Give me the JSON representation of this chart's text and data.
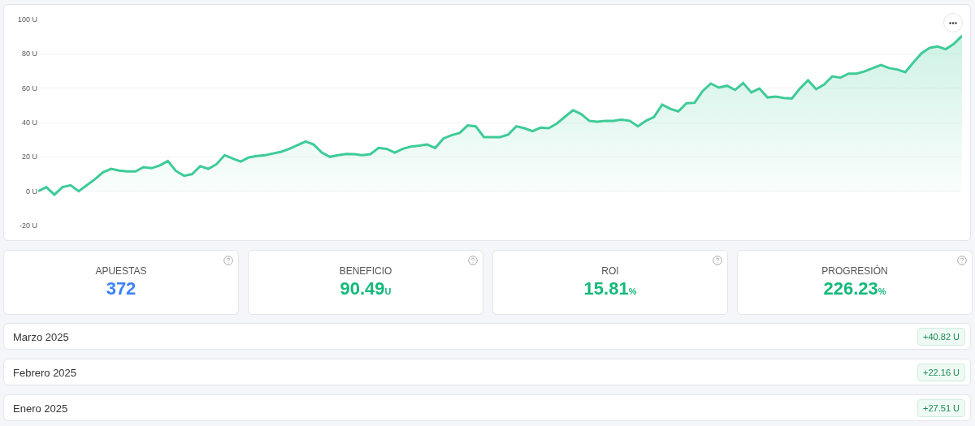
{
  "chart_data": [
    {
      "type": "area",
      "categories": [
        null,
        null,
        null,
        null,
        null,
        null,
        null,
        null,
        null,
        null,
        null,
        null,
        null,
        null,
        null,
        null,
        null,
        null,
        null,
        null,
        null,
        null,
        null,
        null,
        null,
        null,
        null,
        null,
        null,
        null,
        null,
        null,
        null,
        null,
        null,
        null,
        null,
        null,
        null,
        null,
        null,
        null,
        null,
        null,
        null,
        null,
        null,
        null,
        null,
        null,
        null,
        null,
        null,
        null,
        null,
        null,
        null,
        null,
        null,
        null,
        null,
        null,
        null,
        null,
        null,
        null,
        null,
        null,
        null,
        null,
        null,
        null,
        null,
        null,
        null,
        null,
        null,
        null,
        null,
        null,
        null,
        null,
        null,
        null,
        null,
        null,
        null,
        null,
        null,
        null,
        null,
        null,
        null,
        null,
        null,
        null,
        null,
        null,
        null,
        null,
        null,
        null,
        null,
        null,
        null,
        null,
        null,
        null,
        null,
        null,
        null,
        null,
        null,
        null,
        null
      ],
      "series": [
        {
          "color": "#3ecb98",
          "values": [
            0,
            2.4,
            -2,
            2.4,
            3.5,
            0,
            3.5,
            7,
            11,
            13,
            12,
            11.5,
            11.5,
            14,
            13.4,
            15,
            17.6,
            11.8,
            9,
            10,
            14.6,
            13,
            15.7,
            21,
            19,
            17.3,
            19.7,
            20.5,
            21,
            22,
            23,
            24.7,
            26.8,
            29,
            27.2,
            22.5,
            20,
            21,
            21.7,
            21.6,
            21,
            21.6,
            25.2,
            24.7,
            22.5,
            24.7,
            26,
            26.5,
            27.2,
            25.2,
            30.7,
            32.6,
            33.9,
            38.3,
            37.8,
            31.5,
            31.5,
            31.5,
            33,
            37.8,
            36.7,
            35,
            37,
            36.7,
            39.4,
            43.3,
            47.2,
            44.9,
            41,
            40.5,
            41,
            41,
            41.7,
            41,
            37.8,
            41,
            43.3,
            50.4,
            48,
            46.5,
            51.2,
            51.5,
            58.3,
            62.7,
            60.3,
            61.4,
            59,
            63,
            57.5,
            59.8,
            54.6,
            55.1,
            54.3,
            54,
            59.8,
            64.6,
            59.4,
            62.2,
            66.9,
            66.1,
            68.5,
            68.5,
            69.8,
            71.7,
            73.5,
            71.7,
            70.9,
            69.3,
            75,
            80.3,
            83.5,
            84.3,
            82.7,
            85.8,
            90.5
          ]
        }
      ],
      "ylim": [
        -20,
        100
      ],
      "yticks": [
        {
          "value": -20,
          "label": "-20 U"
        },
        {
          "value": 0,
          "label": "0 U"
        },
        {
          "value": 20,
          "label": "20 U"
        },
        {
          "value": 40,
          "label": "40 U"
        },
        {
          "value": 60,
          "label": "60 U"
        },
        {
          "value": 80,
          "label": "80 U"
        },
        {
          "value": 100,
          "label": "100 U"
        }
      ],
      "grid": "y",
      "tick_labels": "y",
      "marker": "none",
      "line_style": "solid"
    },
    {
      "type": "other",
      "categories": [
        "APUESTAS",
        "BENEFICIO",
        "ROI",
        "PROGRESIÓN",
        "Marzo 2025",
        "Febrero 2025",
        "Enero 2025"
      ],
      "value_labels": [
        "372",
        "90.49U",
        "15.81%",
        "226.23%",
        "+40.82 U",
        "+22.16 U",
        "+27.51 U"
      ]
    }
  ]
}
